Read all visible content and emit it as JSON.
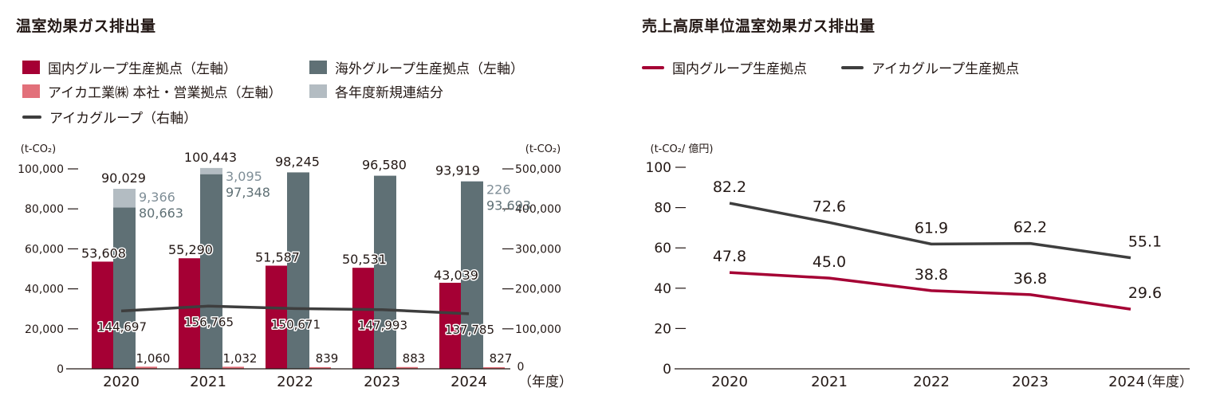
{
  "colors": {
    "domestic": "#a50034",
    "overseas": "#5f7075",
    "hq": "#e2707a",
    "new_consolidation": "#b3bcc2",
    "group_line": "#3e3e3e",
    "text": "#231815",
    "light_label": "#7f8e97"
  },
  "left": {
    "title": "温室効果ガス排出量",
    "legend": [
      {
        "key": "domestic",
        "label": "国内グループ生産拠点（左軸）",
        "type": "box"
      },
      {
        "key": "overseas",
        "label": "海外グループ生産拠点（左軸）",
        "type": "box"
      },
      {
        "key": "hq",
        "label": "アイカ工業㈱ 本社・営業拠点（左軸）",
        "type": "box"
      },
      {
        "key": "new_consolidation",
        "label": "各年度新規連結分",
        "type": "box"
      },
      {
        "key": "group_line",
        "label": "アイカグループ（右軸）",
        "type": "line"
      }
    ]
  },
  "right": {
    "title": "売上高原単位温室効果ガス排出量",
    "legend": [
      {
        "key": "domestic",
        "label": "国内グループ生産拠点",
        "type": "line"
      },
      {
        "key": "group_line",
        "label": "アイカグループ生産拠点",
        "type": "line"
      }
    ]
  },
  "chart_data": [
    {
      "type": "bar",
      "title": "温室効果ガス排出量",
      "categories": [
        "2020",
        "2021",
        "2022",
        "2023",
        "2024"
      ],
      "xlabel": "（年度）",
      "ylabel_left": "(t-CO₂)",
      "ylabel_right": "(t-CO₂)",
      "ylim_left": [
        0,
        100000
      ],
      "yticks_left": [
        "0",
        "20,000",
        "40,000",
        "60,000",
        "80,000",
        "100,000"
      ],
      "ylim_right": [
        0,
        500000
      ],
      "yticks_right": [
        "0",
        "100,000",
        "200,000",
        "300,000",
        "400,000",
        "500,000"
      ],
      "series": [
        {
          "name": "国内グループ生産拠点（左軸）",
          "key": "domestic",
          "axis": "left",
          "values": [
            53608,
            55290,
            51587,
            50531,
            43039
          ],
          "labels": [
            "53,608",
            "55,290",
            "51,587",
            "50,531",
            "43,039"
          ]
        },
        {
          "name": "海外グループ生産拠点（左軸）",
          "key": "overseas",
          "axis": "left",
          "values": [
            80663,
            97348,
            98245,
            96580,
            93693
          ],
          "labels": [
            "80,663",
            "97,348",
            "98,245",
            "96,580",
            "93,693"
          ]
        },
        {
          "name": "各年度新規連結分",
          "key": "new_consolidation",
          "axis": "left",
          "stacked_on": "overseas",
          "values": [
            9366,
            3095,
            0,
            0,
            226
          ],
          "labels": [
            "9,366",
            "3,095",
            "",
            "",
            "226"
          ]
        },
        {
          "name": "アイカ工業㈱ 本社・営業拠点（左軸）",
          "key": "hq",
          "axis": "left",
          "values": [
            1060,
            1032,
            839,
            883,
            827
          ],
          "labels": [
            "1,060",
            "1,032",
            "839",
            "883",
            "827"
          ]
        },
        {
          "name": "アイカグループ（右軸）",
          "key": "group_line",
          "axis": "right",
          "type": "line",
          "values": [
            144697,
            156765,
            150671,
            147993,
            137785
          ],
          "labels": [
            "144,697",
            "156,765",
            "150,671",
            "147,993",
            "137,785"
          ]
        }
      ],
      "overseas_totals": [
        "90,029",
        "100,443",
        "98,245",
        "96,580",
        "93,919"
      ],
      "legend": "top-left",
      "grid": false
    },
    {
      "type": "line",
      "title": "売上高原単位温室効果ガス排出量",
      "categories": [
        "2020",
        "2021",
        "2022",
        "2023",
        "2024"
      ],
      "xlabel": "（年度）",
      "ylabel": "(t-CO₂/ 億円)",
      "ylim": [
        0,
        100
      ],
      "yticks": [
        "0",
        "20",
        "40",
        "60",
        "80",
        "100"
      ],
      "series": [
        {
          "name": "国内グループ生産拠点",
          "key": "domestic",
          "values": [
            47.8,
            45.0,
            38.8,
            36.8,
            29.6
          ],
          "labels": [
            "47.8",
            "45.0",
            "38.8",
            "36.8",
            "29.6"
          ]
        },
        {
          "name": "アイカグループ生産拠点",
          "key": "group_line",
          "values": [
            82.2,
            72.6,
            61.9,
            62.2,
            55.1
          ],
          "labels": [
            "82.2",
            "72.6",
            "61.9",
            "62.2",
            "55.1"
          ]
        }
      ],
      "legend": "top-left",
      "grid": false
    }
  ]
}
